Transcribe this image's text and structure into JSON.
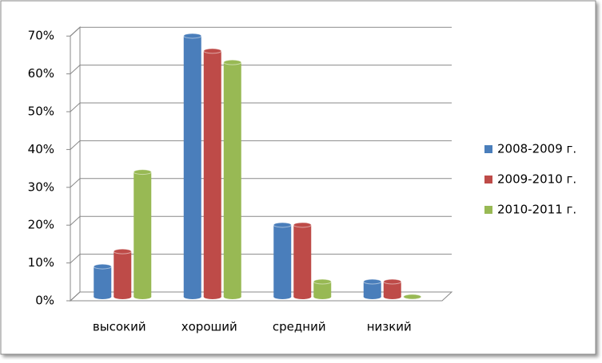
{
  "chart_data": {
    "type": "bar",
    "categories": [
      "высокий",
      "хороший",
      "средний",
      "низкий"
    ],
    "series": [
      {
        "name": "2008-2009 г.",
        "color": "#4a7ebb",
        "values": [
          8,
          69,
          19,
          4
        ]
      },
      {
        "name": "2009-2010 г.",
        "color": "#be4b48",
        "values": [
          12,
          65,
          19,
          4
        ]
      },
      {
        "name": "2010-2011 г.",
        "color": "#98b954",
        "values": [
          33,
          62,
          4,
          0
        ]
      }
    ],
    "ylim": [
      0,
      70
    ],
    "yticks": [
      {
        "value": 0,
        "label": "0%"
      },
      {
        "value": 10,
        "label": "10%"
      },
      {
        "value": 20,
        "label": "20%"
      },
      {
        "value": 30,
        "label": "30%"
      },
      {
        "value": 40,
        "label": "40%"
      },
      {
        "value": 50,
        "label": "50%"
      },
      {
        "value": 60,
        "label": "60%"
      },
      {
        "value": 70,
        "label": "70%"
      }
    ],
    "grid": true,
    "legend": "right"
  }
}
